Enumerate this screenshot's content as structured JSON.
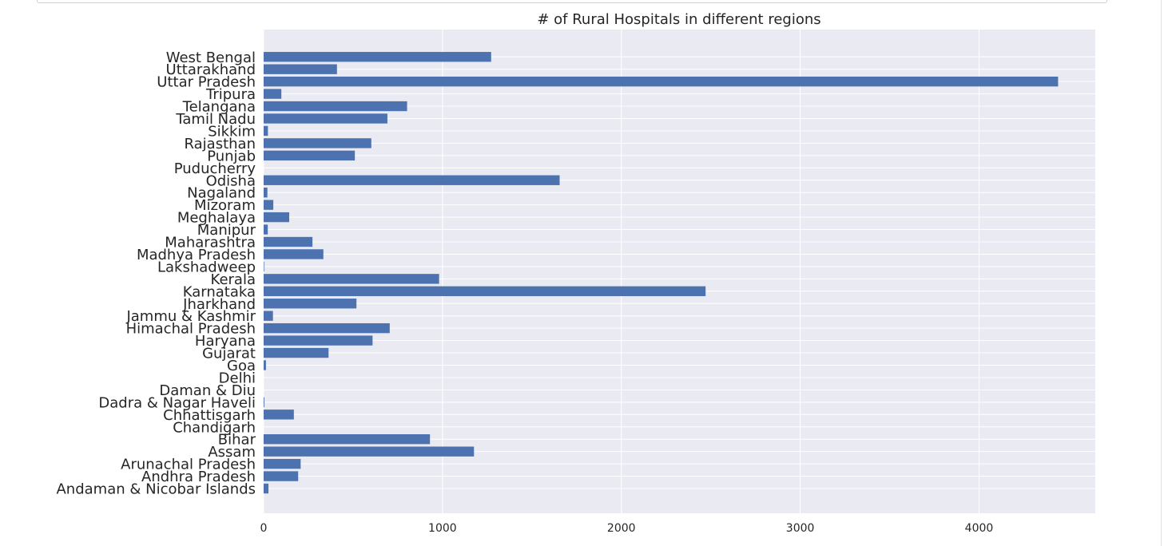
{
  "chart_data": {
    "type": "bar",
    "orientation": "horizontal",
    "title": "# of Rural Hospitals in different regions",
    "xlabel": "",
    "ylabel": "",
    "xlim": [
      0,
      4650
    ],
    "xticks": [
      0,
      1000,
      2000,
      3000,
      4000
    ],
    "grid": true,
    "bar_color": "#4c72b0",
    "background_color": "#eaeaf2",
    "categories": [
      "Andaman & Nicobar Islands",
      "Andhra Pradesh",
      "Arunachal Pradesh",
      "Assam",
      "Bihar",
      "Chandigarh",
      "Chhattisgarh",
      "Dadra & Nagar Haveli",
      "Daman & Diu",
      "Delhi",
      "Goa",
      "Gujarat",
      "Haryana",
      "Himachal Pradesh",
      "Jammu & Kashmir",
      "Jharkhand",
      "Karnataka",
      "Kerala",
      "Lakshadweep",
      "Madhya Pradesh",
      "Maharashtra",
      "Manipur",
      "Meghalaya",
      "Mizoram",
      "Nagaland",
      "Odisha",
      "Puducherry",
      "Punjab",
      "Rajasthan",
      "Sikkim",
      "Tamil Nadu",
      "Telangana",
      "Tripura",
      "Uttar Pradesh",
      "Uttarakhand",
      "West Bengal"
    ],
    "values": [
      27,
      193,
      207,
      1176,
      930,
      0,
      169,
      4,
      0,
      0,
      13,
      363,
      609,
      705,
      52,
      519,
      2471,
      981,
      3,
      334,
      273,
      23,
      143,
      54,
      21,
      1655,
      0,
      510,
      602,
      24,
      692,
      802,
      99,
      4442,
      410,
      1272
    ]
  }
}
